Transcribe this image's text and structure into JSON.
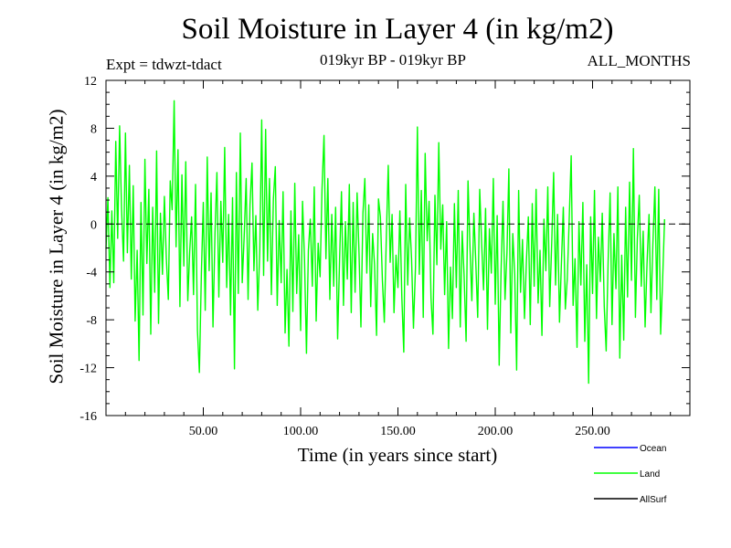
{
  "chart_data": {
    "type": "line",
    "title": "Soil Moisture in Layer 4 (in kg/m2)",
    "subtitle_left": "Expt = tdwzt-tdact",
    "subtitle_center": "019kyr BP - 019kyr BP",
    "subtitle_right": "ALL_MONTHS",
    "xlabel": "Time (in years since start)",
    "ylabel": "Soil Moisture in Layer 4 (in kg/m2)",
    "xlim": [
      0,
      300
    ],
    "ylim": [
      -16,
      12
    ],
    "x_ticks": [
      50,
      100,
      150,
      200,
      250
    ],
    "x_tick_labels": [
      "50.00",
      "100.00",
      "150.00",
      "200.00",
      "250.00"
    ],
    "y_ticks": [
      -16,
      -12,
      -8,
      -4,
      0,
      4,
      8,
      12
    ],
    "y_tick_labels": [
      "-16",
      "-12",
      "-8",
      "-4",
      "0",
      "4",
      "8",
      "12"
    ],
    "reference_line": {
      "y": 0,
      "style": "dashed"
    },
    "series": [
      {
        "name": "Land",
        "color": "#00ff00",
        "x_start": 0,
        "x_step": 1,
        "values": [
          -2.1,
          2.2,
          -5.3,
          1.1,
          -4.9,
          6.9,
          -1.2,
          8.2,
          1.3,
          -3.1,
          7.6,
          -2.4,
          4.9,
          -4.6,
          3.2,
          -8.1,
          -2.2,
          -11.4,
          1.8,
          -7.6,
          5.4,
          -3.3,
          2.9,
          -9.2,
          1.4,
          -5.7,
          6.1,
          -8.3,
          0.9,
          -4.2,
          2.3,
          -2.8,
          -6.3,
          3.6,
          1.2,
          10.3,
          -1.9,
          6.2,
          -6.9,
          4.1,
          -3.5,
          5.2,
          -6.4,
          -2.3,
          0.6,
          -5.9,
          3.3,
          -8.9,
          -12.4,
          -4.1,
          1.8,
          -7.2,
          5.6,
          -3.9,
          2.6,
          -8.6,
          -0.7,
          4.3,
          -6.1,
          1.9,
          -3.2,
          6.4,
          -5.3,
          0.8,
          -7.6,
          2.2,
          -12.1,
          4.3,
          -5.8,
          7.6,
          -4.9,
          -1.1,
          3.8,
          -6.3,
          1.6,
          5.1,
          -3.9,
          0.7,
          -7.2,
          -2.2,
          8.7,
          -4.3,
          7.9,
          -3.1,
          3.8,
          -5.9,
          2.1,
          4.8,
          -6.8,
          0.3,
          -4.9,
          2.7,
          -9.1,
          -3.8,
          -10.2,
          1.1,
          -7.3,
          3.4,
          -5.8,
          -0.9,
          -8.9,
          1.9,
          -3.1,
          -10.8,
          -2.2,
          0.4,
          -5.2,
          3.1,
          -8.1,
          -1.6,
          -4.4,
          2.9,
          7.4,
          -2.9,
          3.8,
          -6.3,
          0.8,
          -5.2,
          1.4,
          -9.6,
          -3.1,
          2.7,
          -6.8,
          0.2,
          -4.6,
          3.3,
          -7.4,
          1.8,
          -5.7,
          2.6,
          -2.4,
          -8.6,
          0.9,
          3.8,
          -4.1,
          1.6,
          -6.9,
          -0.8,
          -3.4,
          -9.3,
          2.1,
          0.6,
          -4.7,
          -8.2,
          -1.4,
          4.9,
          -3.2,
          0.8,
          -7.4,
          -2.6,
          -5.3,
          1.1,
          -6.2,
          -10.7,
          3.3,
          -5.1,
          0.5,
          -2.9,
          -8.7,
          -3.6,
          8.1,
          -4.2,
          2.8,
          -7.8,
          5.9,
          -1.4,
          1.9,
          -6.2,
          -9.2,
          2.4,
          -3.4,
          6.8,
          -2.1,
          1.6,
          -5.9,
          0.2,
          -10.4,
          -3.6,
          -7.9,
          1.7,
          -5.3,
          2.8,
          -8.6,
          -0.6,
          -4.3,
          -9.8,
          3.6,
          -1.8,
          -6.4,
          0.9,
          -3.2,
          -7.8,
          2.9,
          -1.6,
          -5.5,
          1.3,
          -8.8,
          -0.4,
          -4.1,
          3.8,
          -6.7,
          0.7,
          -11.8,
          -3.8,
          1.9,
          -6.3,
          -2.4,
          4.6,
          -9.1,
          -0.8,
          -4.2,
          -12.2,
          2.8,
          -5.7,
          -1.3,
          -7.9,
          -3.1,
          0.6,
          -8.4,
          1.7,
          -5.2,
          2.9,
          -6.6,
          -2.2,
          -9.3,
          0.4,
          -3.9,
          3.1,
          -6.9,
          -1.6,
          4.3,
          -5.1,
          0.8,
          -8.2,
          -3.3,
          1.4,
          -7.1,
          -4.6,
          0.3,
          5.7,
          -6.8,
          -2.9,
          -10.3,
          0.2,
          -5.1,
          1.8,
          -9.8,
          -3.4,
          -13.3,
          0.6,
          -5.8,
          2.8,
          -7.9,
          -1.1,
          -4.8,
          0.9,
          -6.9,
          -10.6,
          -3.2,
          2.6,
          -8.4,
          -0.8,
          -5.4,
          3.1,
          -11.2,
          -2.6,
          -9.7,
          1.4,
          -6.1,
          3.5,
          -4.7,
          6.3,
          -7.8,
          -1.2,
          2.4,
          -5.2,
          -0.6,
          -8.6,
          -3.3,
          0.8,
          -7.4,
          -1.7,
          3.1,
          -6.3,
          2.9,
          -9.2,
          -4.6,
          0.4
        ]
      },
      {
        "name": "Ocean",
        "color": "#0000ff",
        "values": []
      },
      {
        "name": "AllSurf",
        "color": "#000000",
        "values": []
      }
    ],
    "legend": [
      {
        "name": "Ocean",
        "color": "#0000ff"
      },
      {
        "name": "Land",
        "color": "#00ff00"
      },
      {
        "name": "AllSurf",
        "color": "#000000"
      }
    ],
    "legend_position": "bottom-right"
  }
}
